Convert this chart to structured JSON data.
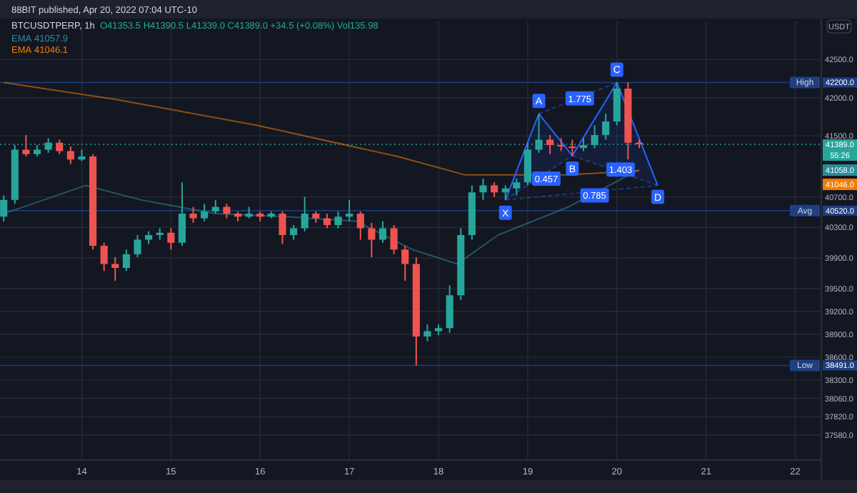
{
  "chart_data": {
    "type": "candlestick",
    "title": "BTCUSDTPERP, 1h",
    "subtitle": "88BIT published, Apr 20, 2022 07:04 UTC-10",
    "ylabel": "USDT",
    "x": [
      "2022-04-13T03:00",
      "2022-04-13T06:00",
      "2022-04-13T09:00",
      "2022-04-13T12:00",
      "2022-04-13T15:00",
      "2022-04-13T18:00",
      "2022-04-13T21:00",
      "2022-04-14T00:00",
      "2022-04-14T03:00",
      "2022-04-14T06:00",
      "2022-04-14T09:00",
      "2022-04-14T12:00",
      "2022-04-14T15:00",
      "2022-04-14T18:00",
      "2022-04-14T21:00",
      "2022-04-15T00:00",
      "2022-04-15T03:00",
      "2022-04-15T06:00",
      "2022-04-15T09:00",
      "2022-04-15T12:00",
      "2022-04-15T15:00",
      "2022-04-15T18:00",
      "2022-04-15T21:00",
      "2022-04-16T00:00",
      "2022-04-16T03:00",
      "2022-04-16T06:00",
      "2022-04-16T09:00",
      "2022-04-16T12:00",
      "2022-04-16T15:00",
      "2022-04-16T18:00",
      "2022-04-16T21:00",
      "2022-04-17T00:00",
      "2022-04-17T03:00",
      "2022-04-17T06:00",
      "2022-04-17T09:00",
      "2022-04-17T12:00",
      "2022-04-17T15:00",
      "2022-04-17T18:00",
      "2022-04-17T21:00",
      "2022-04-18T00:00",
      "2022-04-18T03:00",
      "2022-04-18T06:00",
      "2022-04-18T09:00",
      "2022-04-18T12:00",
      "2022-04-18T15:00",
      "2022-04-18T18:00",
      "2022-04-18T21:00",
      "2022-04-19T00:00",
      "2022-04-19T03:00",
      "2022-04-19T06:00",
      "2022-04-19T09:00",
      "2022-04-19T12:00",
      "2022-04-19T15:00",
      "2022-04-19T18:00",
      "2022-04-19T21:00",
      "2022-04-20T00:00",
      "2022-04-20T03:00",
      "2022-04-20T06:00"
    ],
    "ohlc": [
      [
        40440,
        40720,
        40380,
        40660
      ],
      [
        40660,
        41380,
        40610,
        41320
      ],
      [
        41320,
        41510,
        41230,
        41260
      ],
      [
        41260,
        41380,
        41230,
        41320
      ],
      [
        41320,
        41470,
        41280,
        41410
      ],
      [
        41410,
        41450,
        41260,
        41300
      ],
      [
        41300,
        41360,
        41130,
        41190
      ],
      [
        41190,
        41320,
        41170,
        41230
      ],
      [
        41230,
        41260,
        40010,
        40060
      ],
      [
        40060,
        40100,
        39730,
        39820
      ],
      [
        39820,
        39910,
        39600,
        39770
      ],
      [
        39770,
        40010,
        39730,
        39950
      ],
      [
        39950,
        40200,
        39910,
        40140
      ],
      [
        40140,
        40250,
        40080,
        40200
      ],
      [
        40200,
        40290,
        40140,
        40230
      ],
      [
        40230,
        40290,
        40010,
        40100
      ],
      [
        40100,
        40890,
        40060,
        40480
      ],
      [
        40480,
        40570,
        40360,
        40420
      ],
      [
        40420,
        40610,
        40380,
        40510
      ],
      [
        40510,
        40660,
        40480,
        40570
      ],
      [
        40570,
        40610,
        40420,
        40480
      ],
      [
        40480,
        40510,
        40380,
        40440
      ],
      [
        40440,
        40570,
        40420,
        40480
      ],
      [
        40480,
        40510,
        40380,
        40440
      ],
      [
        40440,
        40510,
        40420,
        40480
      ],
      [
        40480,
        40510,
        40080,
        40200
      ],
      [
        40200,
        40330,
        40140,
        40290
      ],
      [
        40290,
        40700,
        40250,
        40480
      ],
      [
        40480,
        40510,
        40360,
        40420
      ],
      [
        40420,
        40480,
        40290,
        40330
      ],
      [
        40330,
        40510,
        40290,
        40440
      ],
      [
        40440,
        40660,
        40380,
        40480
      ],
      [
        40480,
        40510,
        40140,
        40290
      ],
      [
        40290,
        40360,
        39910,
        40140
      ],
      [
        40140,
        40380,
        40100,
        40290
      ],
      [
        40290,
        40330,
        39950,
        40010
      ],
      [
        40010,
        40060,
        39600,
        39820
      ],
      [
        39820,
        39910,
        38491,
        38870
      ],
      [
        38870,
        39030,
        38810,
        38940
      ],
      [
        38940,
        39030,
        38890,
        38980
      ],
      [
        38980,
        39540,
        38920,
        39410
      ],
      [
        39410,
        40290,
        39350,
        40200
      ],
      [
        40200,
        40850,
        40140,
        40760
      ],
      [
        40760,
        40940,
        40660,
        40850
      ],
      [
        40850,
        40890,
        40700,
        40760
      ],
      [
        40760,
        40850,
        40660,
        40810
      ],
      [
        40810,
        40940,
        40720,
        40890
      ],
      [
        40890,
        41410,
        40850,
        41320
      ],
      [
        41320,
        41790,
        41280,
        41450
      ],
      [
        41450,
        41510,
        41260,
        41380
      ],
      [
        41380,
        41470,
        41300,
        41360
      ],
      [
        41360,
        41450,
        41240,
        41340
      ],
      [
        41340,
        41470,
        41300,
        41380
      ],
      [
        41380,
        41640,
        41340,
        41510
      ],
      [
        41510,
        41790,
        41450,
        41690
      ],
      [
        41690,
        42200,
        41640,
        42120
      ],
      [
        42120,
        42200,
        41190,
        41410
      ],
      [
        41410,
        41450,
        41340,
        41389
      ]
    ],
    "series": [
      {
        "type": "line",
        "name": "EMA",
        "color": "#2a8c98",
        "x": [
          "2022-04-13T03:00",
          "2022-04-14T01:00",
          "2022-04-14T16:00",
          "2022-04-15T12:00",
          "2022-04-16T07:00",
          "2022-04-17T02:00",
          "2022-04-17T17:00",
          "2022-04-18T05:00",
          "2022-04-18T16:00",
          "2022-04-19T11:00",
          "2022-04-20T06:00"
        ],
        "values": [
          40480,
          40850,
          40660,
          40480,
          40440,
          40380,
          40010,
          39820,
          40200,
          40570,
          41058
        ]
      },
      {
        "type": "line",
        "name": "EMA",
        "color": "#f57c00",
        "x": [
          "2022-04-13T03:00",
          "2022-04-14T09:00",
          "2022-04-15T23:00",
          "2022-04-17T13:00",
          "2022-04-18T07:00",
          "2022-04-19T11:00",
          "2022-04-20T06:00"
        ],
        "values": [
          42200,
          41980,
          41640,
          41230,
          40990,
          40990,
          41046
        ]
      },
      {
        "type": "line",
        "color": "#2962ff",
        "x": [
          "2022-04-18T18:00",
          "2022-04-19T03:00",
          "2022-04-19T12:00",
          "2022-04-20T00:00",
          "2022-04-20T11:00"
        ],
        "values": [
          40660,
          41790,
          41240,
          42200,
          40850
        ]
      }
    ],
    "xlim": [
      "2022-04-13T02:00",
      "2022-04-22T07:00"
    ],
    "xticks": [
      {
        "value": "2022-04-14",
        "label": "14"
      },
      {
        "value": "2022-04-15",
        "label": "15"
      },
      {
        "value": "2022-04-16",
        "label": "16"
      },
      {
        "value": "2022-04-17",
        "label": "17"
      },
      {
        "value": "2022-04-18",
        "label": "18"
      },
      {
        "value": "2022-04-19",
        "label": "19"
      },
      {
        "value": "2022-04-20",
        "label": "20"
      },
      {
        "value": "2022-04-21",
        "label": "21"
      },
      {
        "value": "2022-04-22",
        "label": "22"
      }
    ],
    "ylim": [
      37250,
      43000
    ],
    "yticks": [
      {
        "value": 42500,
        "label": "42500.0"
      },
      {
        "value": 42000,
        "label": "42000.0"
      },
      {
        "value": 41500,
        "label": "41500.0"
      },
      {
        "value": 40700,
        "label": "40700.0"
      },
      {
        "value": 40300,
        "label": "40300.0"
      },
      {
        "value": 39900,
        "label": "39900.0"
      },
      {
        "value": 39500,
        "label": "39500.0"
      },
      {
        "value": 39200,
        "label": "39200.0"
      },
      {
        "value": 38900,
        "label": "38900.0"
      },
      {
        "value": 38600,
        "label": "38600.0"
      },
      {
        "value": 38300,
        "label": "38300.0"
      },
      {
        "value": 38060,
        "label": "38060.0"
      },
      {
        "value": 37820,
        "label": "37820.0"
      },
      {
        "value": 37580,
        "label": "37580.0"
      }
    ],
    "ref_lines": [
      {
        "axis": "y",
        "value": 42200,
        "label": "42200.0",
        "color": "#1e3f80"
      },
      {
        "axis": "y",
        "value": 40520,
        "label": "40520.0",
        "color": "#1e3f80"
      },
      {
        "axis": "y",
        "value": 38491,
        "label": "38491.0",
        "color": "#1e3f80"
      },
      {
        "axis": "y",
        "value": 41389,
        "label": "41389.0",
        "color": "#26a69a",
        "line_style": "dotted"
      }
    ],
    "annotations": [
      "O41353.5 H41390.5 L41339.0 C41389.0 +34.5 (+0.08%) Vol135.98",
      "41057.9",
      "41046.1",
      {
        "text": "X",
        "x": "2022-04-18T18:00",
        "y": 40660
      },
      {
        "text": "A",
        "x": "2022-04-19T03:00",
        "y": 41790
      },
      {
        "text": "B",
        "x": "2022-04-19T12:00",
        "y": 41240
      },
      {
        "text": "C",
        "x": "2022-04-20T00:00",
        "y": 42200
      },
      {
        "text": "D",
        "x": "2022-04-20T11:00",
        "y": 40850
      },
      {
        "text": "0.457",
        "x": "2022-04-19T05:00",
        "y": 40940
      },
      {
        "text": "1.775",
        "x": "2022-04-19T14:00",
        "y": 41990
      },
      {
        "text": "1.403",
        "x": "2022-04-20T01:00",
        "y": 41060
      },
      {
        "text": "0.785",
        "x": "2022-04-19T18:00",
        "y": 40720
      },
      "55:26",
      "41058.0",
      "41046.0",
      "High",
      "Avg",
      "Low"
    ],
    "grid": true,
    "legend": "top left"
  }
}
